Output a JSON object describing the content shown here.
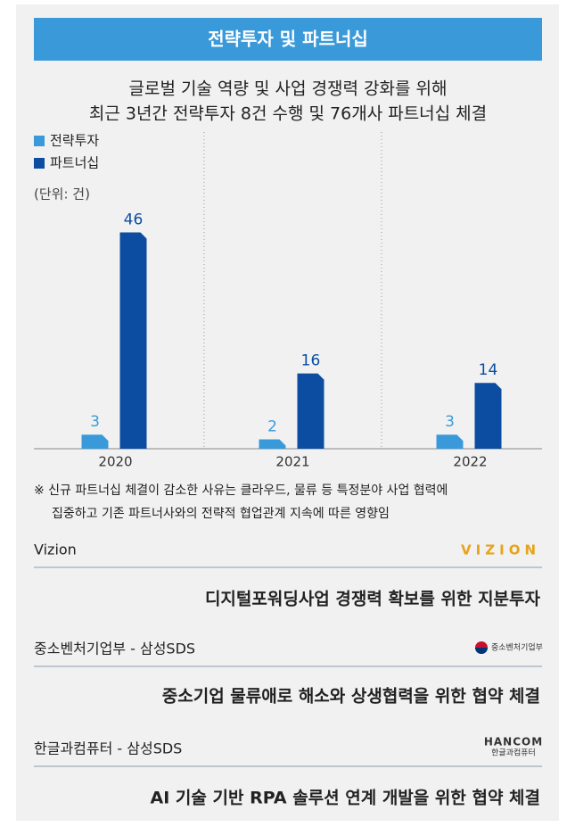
{
  "header": {
    "title": "전략투자 및 파트너십"
  },
  "subtitle": [
    "글로벌 기술 역량 및 사업 경쟁력 강화를 위해",
    "최근 3년간 전략투자 8건 수행 및 76개사 파트너십 체결"
  ],
  "chart_data": {
    "type": "bar",
    "unit": "(단위: 건)",
    "categories": [
      "2020",
      "2021",
      "2022"
    ],
    "series": [
      {
        "name": "전략투자",
        "color": "#3a9ad9",
        "values": [
          3,
          2,
          3
        ]
      },
      {
        "name": "파트너십",
        "color": "#0d4da1",
        "values": [
          46,
          16,
          14
        ]
      }
    ],
    "ylim": [
      0,
      48
    ]
  },
  "note": [
    "※ 신규 파트너십 체결이 감소한 사유는 클라우드, 물류 등 특정분야 사업 협력에",
    "집중하고 기존 파트너사와의 전략적 협업관계 지속에 따른 영향임"
  ],
  "items": [
    {
      "partner": "Vizion",
      "logo": [
        "VIZION"
      ],
      "title": "디지털포워딩사업 경쟁력 확보를 위한 지분투자"
    },
    {
      "partner": "중소벤처기업부 - 삼성SDS",
      "logo": [
        "중소벤처기업부"
      ],
      "title": "중소기업 물류애로 해소와 상생협력을 위한 협약 체결"
    },
    {
      "partner": "한글과컴퓨터 - 삼성SDS",
      "logo": [
        "HANCOM",
        "한글과컴퓨터"
      ],
      "title": "AI 기술 기반 RPA 솔루션 연계 개발을 위한 협약 체결"
    }
  ]
}
